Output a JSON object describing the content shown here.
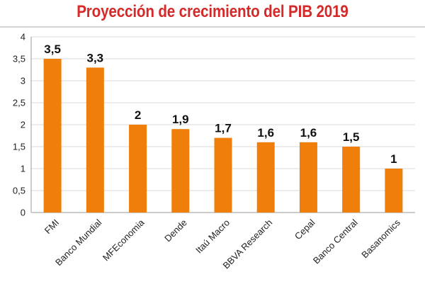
{
  "colors": {
    "title": "#d42a2a",
    "bar": "#ef7e0b",
    "grid": "#d9d9d9",
    "axis": "#9a9a9a"
  },
  "chart_data": {
    "type": "bar",
    "title": "Proyección de crecimiento del PIB 2019",
    "xlabel": "",
    "ylabel": "",
    "categories": [
      "FMI",
      "Banco Mundial",
      "MFEconomia",
      "Dende",
      "Itaú Macro",
      "BBVA Research",
      "Cepal",
      "Banco Central",
      "Basanomics"
    ],
    "values": [
      3.5,
      3.3,
      2,
      1.9,
      1.7,
      1.6,
      1.6,
      1.5,
      1
    ],
    "data_labels": [
      "3,5",
      "3,3",
      "2",
      "1,9",
      "1,7",
      "1,6",
      "1,6",
      "1,5",
      "1"
    ],
    "ylim": [
      0,
      4
    ],
    "yticks": [
      0,
      0.5,
      1,
      1.5,
      2,
      2.5,
      3,
      3.5,
      4
    ],
    "ytick_labels": [
      "0",
      "0,5",
      "1",
      "1,5",
      "2",
      "2,5",
      "3",
      "3,5",
      "4"
    ],
    "grid": true,
    "legend": "none",
    "bar_color": "#ef7e0b"
  }
}
